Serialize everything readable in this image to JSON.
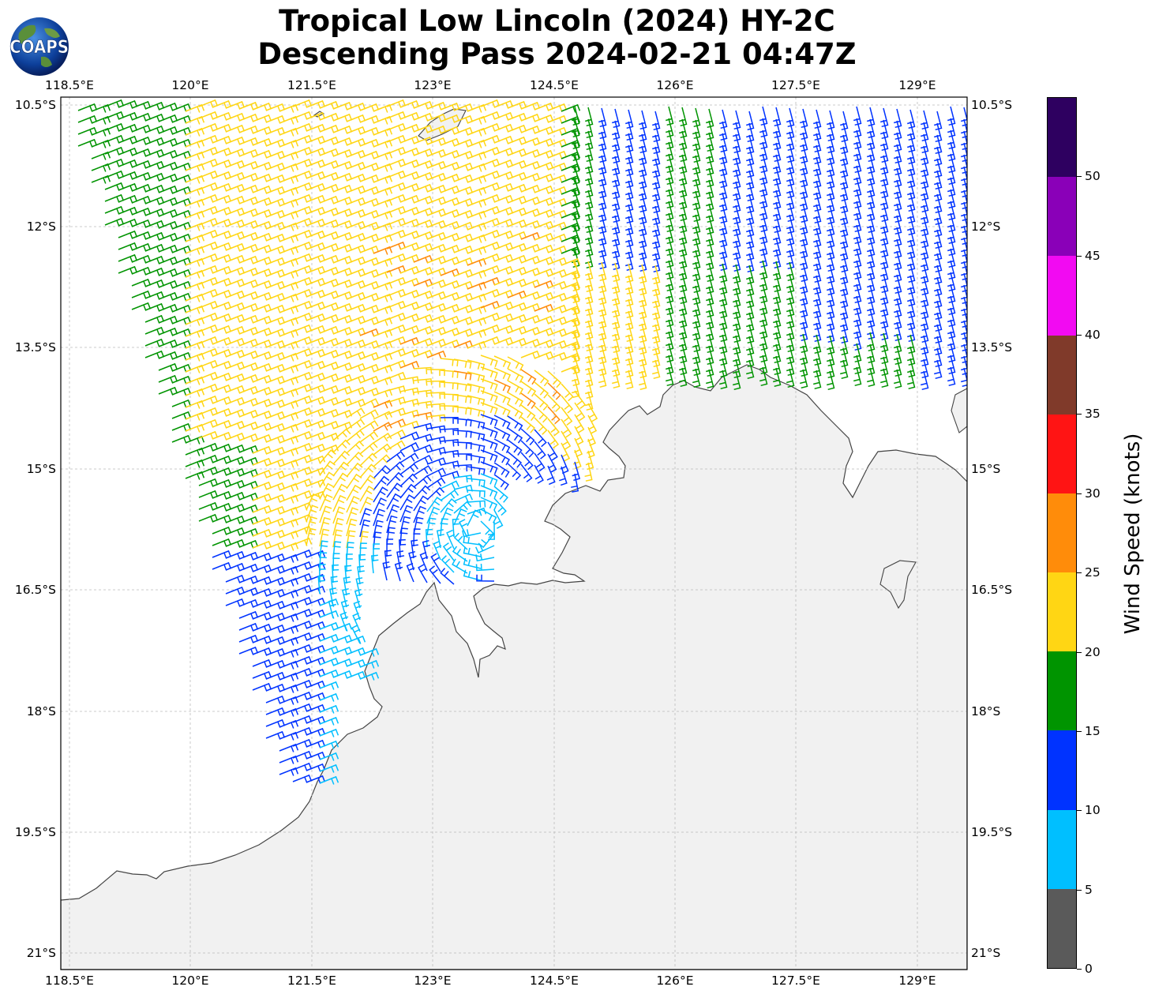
{
  "title": {
    "line1": "Tropical Low Lincoln (2024) HY-2C",
    "line2": "Descending Pass 2024-02-21 04:47Z"
  },
  "logo": {
    "text": "COAPS"
  },
  "axes": {
    "lon_labels": [
      "118.5°E",
      "120°E",
      "121.5°E",
      "123°E",
      "124.5°E",
      "126°E",
      "127.5°E",
      "129°E"
    ],
    "lat_labels": [
      "10.5°S",
      "12°S",
      "13.5°S",
      "15°S",
      "16.5°S",
      "18°S",
      "19.5°S",
      "21°S"
    ]
  },
  "colorbar": {
    "title": "Wind Speed (knots)",
    "ticks": [
      "0",
      "5",
      "10",
      "15",
      "20",
      "25",
      "30",
      "35",
      "40",
      "45",
      "50"
    ],
    "colors": [
      "#5a5a5a",
      "#00bfff",
      "#0033ff",
      "#009400",
      "#ffd614",
      "#ff8c0a",
      "#ff1414",
      "#803a2a",
      "#f20af2",
      "#8a00b8",
      "#2e0060"
    ]
  },
  "colors": {
    "land": "#f2f2f2",
    "coastline": "#444444",
    "gridline": "#bbbbbb"
  }
}
